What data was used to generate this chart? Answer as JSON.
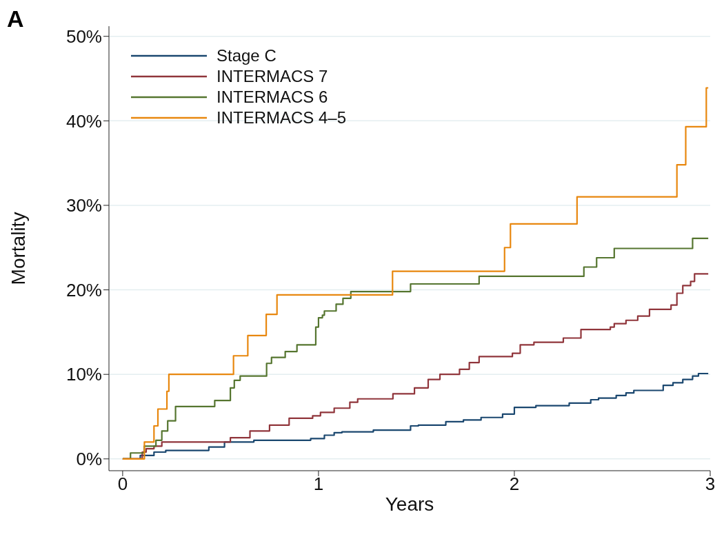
{
  "chart_data": {
    "type": "step",
    "title": "A",
    "xlabel": "Years",
    "ylabel": "Mortality",
    "xlim": [
      -0.07,
      3
    ],
    "xticks": [
      0,
      1,
      2,
      3
    ],
    "ylim": [
      -1.4,
      51.2
    ],
    "yticks": [
      {
        "value": 0,
        "label": "0%"
      },
      {
        "value": 10,
        "label": "10%"
      },
      {
        "value": 20,
        "label": "20%"
      },
      {
        "value": 30,
        "label": "30%"
      },
      {
        "value": 40,
        "label": "40%"
      },
      {
        "value": 50,
        "label": "50%"
      }
    ],
    "grid": "y",
    "legend": "top left",
    "series": [
      {
        "name": "Stage C",
        "color": "#1a476f",
        "x": [
          0,
          0.09,
          0.16,
          0.22,
          0.32,
          0.44,
          0.52,
          0.67,
          0.96,
          1.03,
          1.08,
          1.12,
          1.28,
          1.47,
          1.51,
          1.65,
          1.74,
          1.83,
          1.94,
          2.0,
          2.11,
          2.28,
          2.39,
          2.43,
          2.52,
          2.57,
          2.61,
          2.76,
          2.81,
          2.86,
          2.91,
          2.94,
          2.99
        ],
        "values": [
          0,
          0.4,
          0.8,
          1.0,
          1.0,
          1.4,
          2.0,
          2.2,
          2.4,
          2.8,
          3.1,
          3.2,
          3.4,
          3.9,
          4.0,
          4.4,
          4.6,
          4.9,
          5.3,
          6.1,
          6.3,
          6.6,
          7.0,
          7.2,
          7.5,
          7.8,
          8.1,
          8.7,
          9.0,
          9.4,
          9.8,
          10.1,
          10.1
        ]
      },
      {
        "name": "INTERMACS 7",
        "color": "#90353b",
        "x": [
          0,
          0.1,
          0.12,
          0.16,
          0.2,
          0.3,
          0.55,
          0.65,
          0.75,
          0.85,
          0.97,
          1.01,
          1.08,
          1.16,
          1.2,
          1.38,
          1.49,
          1.56,
          1.62,
          1.72,
          1.77,
          1.82,
          1.99,
          2.03,
          2.1,
          2.25,
          2.34,
          2.49,
          2.51,
          2.57,
          2.63,
          2.69,
          2.8,
          2.83,
          2.86,
          2.9,
          2.92,
          2.99
        ],
        "values": [
          0,
          0.8,
          1.2,
          1.5,
          2.0,
          2.0,
          2.5,
          3.3,
          4.0,
          4.8,
          5.1,
          5.5,
          6.0,
          6.7,
          7.1,
          7.7,
          8.4,
          9.4,
          10.0,
          10.6,
          11.4,
          12.1,
          12.5,
          13.5,
          13.8,
          14.3,
          15.3,
          15.6,
          16.0,
          16.4,
          16.9,
          17.7,
          18.2,
          19.6,
          20.5,
          21.0,
          21.9,
          21.9
        ]
      },
      {
        "name": "INTERMACS 6",
        "color": "#55752f",
        "x": [
          0,
          0.04,
          0.11,
          0.17,
          0.2,
          0.23,
          0.27,
          0.47,
          0.55,
          0.57,
          0.6,
          0.735,
          0.76,
          0.83,
          0.89,
          0.986,
          1.0,
          1.02,
          1.03,
          1.09,
          1.125,
          1.165,
          1.47,
          1.82,
          2.355,
          2.42,
          2.51,
          2.91,
          2.99
        ],
        "values": [
          0,
          0.7,
          1.5,
          2.2,
          3.3,
          4.5,
          6.2,
          6.9,
          8.4,
          9.3,
          9.8,
          11.3,
          12.0,
          12.7,
          13.5,
          15.6,
          16.7,
          17.0,
          17.5,
          18.3,
          19.0,
          19.8,
          20.7,
          21.6,
          22.7,
          23.8,
          24.9,
          26.1,
          26.1
        ]
      },
      {
        "name": "INTERMACS 4–5",
        "color": "#e8870e",
        "x": [
          0,
          0.111,
          0.16,
          0.18,
          0.226,
          0.236,
          0.566,
          0.639,
          0.733,
          0.788,
          1.378,
          1.95,
          1.98,
          2.32,
          2.83,
          2.875,
          2.98,
          2.99
        ],
        "values": [
          0,
          2.0,
          3.9,
          5.9,
          8.0,
          10.0,
          12.2,
          14.6,
          17.1,
          19.4,
          22.2,
          25.0,
          27.8,
          31.0,
          34.8,
          39.3,
          43.9,
          43.9
        ]
      }
    ]
  }
}
